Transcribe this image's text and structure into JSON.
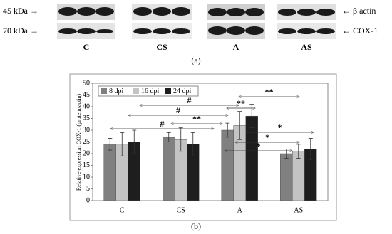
{
  "blot": {
    "rows": [
      "45 kDa →",
      "70 kDa →"
    ],
    "proteins": [
      "← β actin",
      "← COX-1"
    ],
    "groups": [
      "C",
      "CS",
      "A",
      "AS"
    ],
    "caption": "(a)"
  },
  "chart_data": {
    "type": "bar",
    "caption": "(b)",
    "y_label": "Relative expression COX-1 (protein/actin)",
    "categories": [
      "C",
      "CS",
      "A",
      "AS"
    ],
    "series": [
      {
        "name": "8 dpi",
        "color": "#808080",
        "values": [
          24,
          27,
          30,
          20
        ],
        "errors": [
          2.5,
          2,
          3,
          2
        ]
      },
      {
        "name": "16 dpi",
        "color": "#c4c4c4",
        "values": [
          24,
          26,
          32,
          21
        ],
        "errors": [
          5,
          5,
          6,
          3
        ]
      },
      {
        "name": "24 dpi",
        "color": "#1e1e1e",
        "values": [
          25,
          24,
          36,
          22
        ],
        "errors": [
          5,
          5,
          5,
          4.5
        ]
      }
    ],
    "ylim": [
      0,
      50
    ],
    "yticks": [
      0,
      5,
      10,
      15,
      20,
      25,
      30,
      35,
      40,
      45,
      50
    ],
    "grid": false,
    "legend": "top-left",
    "annotations": [
      "#",
      "#",
      "**",
      "#",
      "**",
      "**",
      "*",
      "*",
      "*"
    ]
  }
}
